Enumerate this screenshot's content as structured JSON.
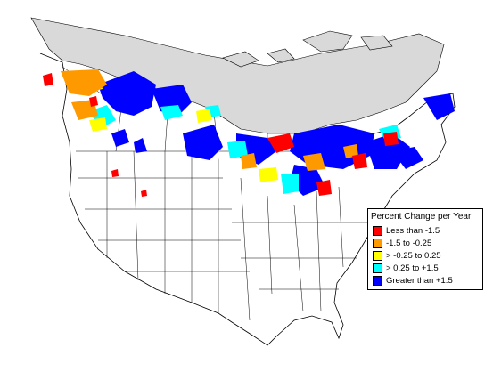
{
  "legend": {
    "title": "Percent Change per Year",
    "items": [
      {
        "label": "Less than -1.5",
        "color": "#ff0000"
      },
      {
        "label": "-1.5 to -0.25",
        "color": "#ff9900"
      },
      {
        "label": "> -0.25 to 0.25",
        "color": "#ffff00"
      },
      {
        "label": "> 0.25 to +1.5",
        "color": "#00ffff"
      },
      {
        "label": "Greater than +1.5",
        "color": "#0000ff"
      }
    ]
  },
  "colors": {
    "no_data_region": "#d9d9d9",
    "land": "#ffffff",
    "boundary": "#000000"
  }
}
